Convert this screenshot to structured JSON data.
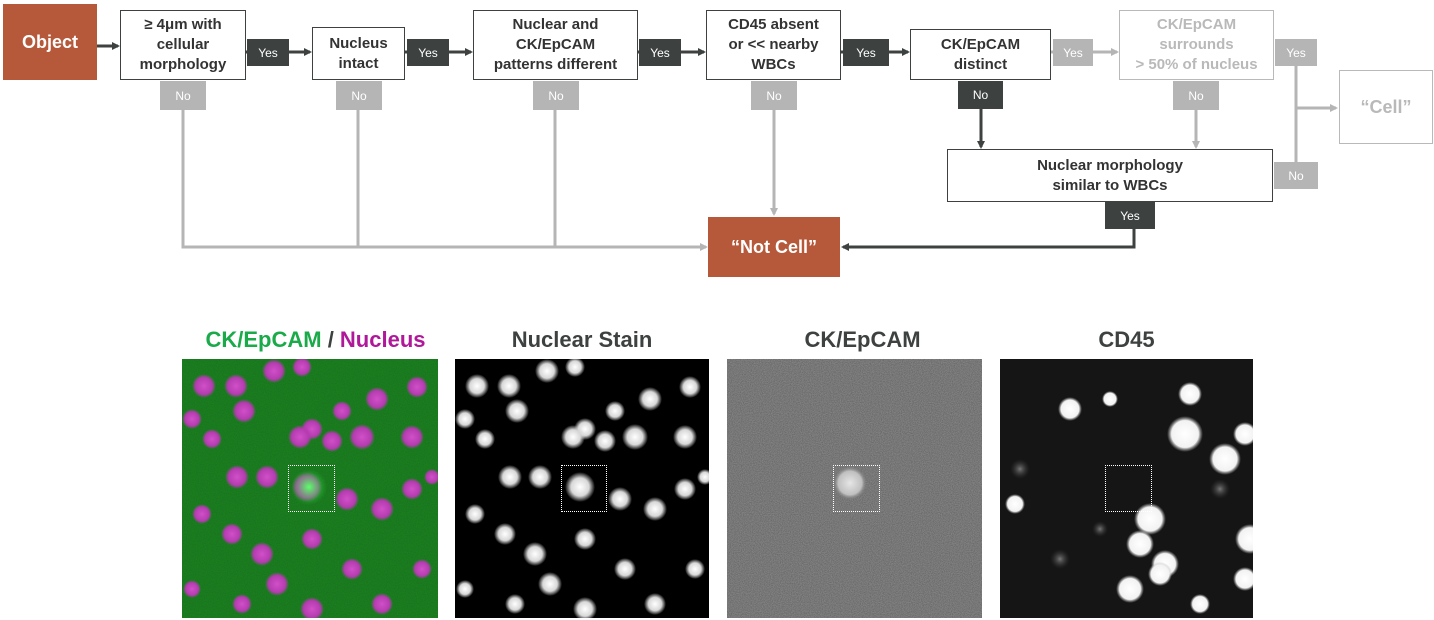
{
  "flowchart": {
    "start": "Object",
    "q1": "≥ 4μm with\ncellular\nmorphology",
    "q2": "Nucleus\nintact",
    "q3": "Nuclear and\nCK/EpCAM\npatterns different",
    "q4": "CD45 absent\nor << nearby\nWBCs",
    "q5": "CK/EpCAM\ndistinct",
    "q6": "CK/EpCAM\nsurrounds\n> 50% of nucleus",
    "q7": "Nuclear morphology\nsimilar to WBCs",
    "outcome_cell": "“Cell”",
    "outcome_not_cell": "“Not Cell”",
    "yes": "Yes",
    "no": "No"
  },
  "panels": {
    "merge_title_a": "CK/EpCAM",
    "merge_title_sep": " / ",
    "merge_title_b": "Nucleus",
    "nuclear_title": "Nuclear Stain",
    "ck_title": "CK/EpCAM",
    "cd45_title": "CD45"
  },
  "colors": {
    "brown": "#b5593a",
    "dark": "#3d4240",
    "gray": "#b5b5b5",
    "green": "#1aaa4a",
    "magenta": "#b0189a"
  }
}
